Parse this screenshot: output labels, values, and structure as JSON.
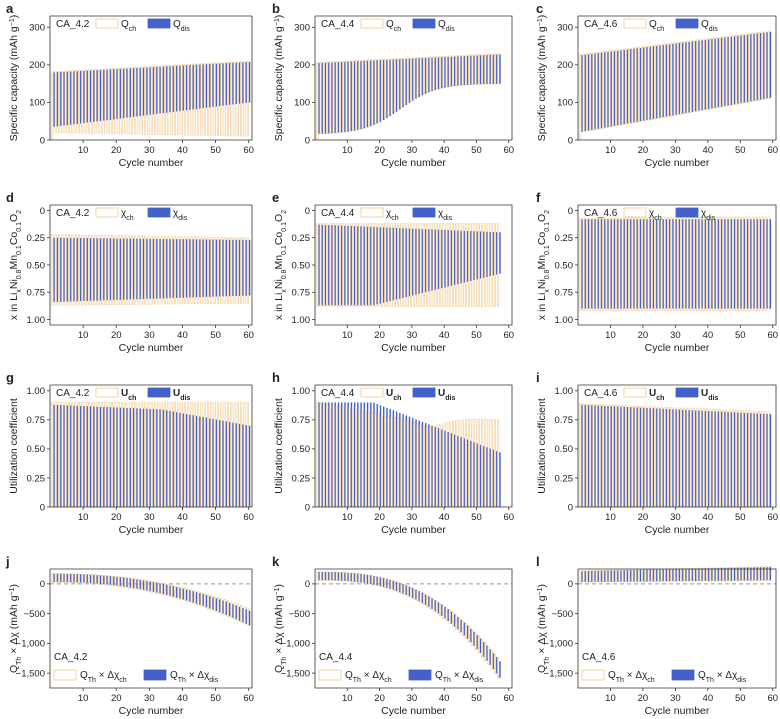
{
  "colors": {
    "charge": "#f2c98e",
    "discharge": "#4361c9",
    "axis": "#333333",
    "zero_line": "#999999"
  },
  "chart_data": [
    {
      "type": "bar",
      "panel": "a",
      "label": "CA_4.2",
      "legend": [
        {
          "main": "Q",
          "sub": "ch"
        },
        {
          "main": "Q",
          "sub": "dis"
        }
      ],
      "xlabel": "Cycle number",
      "ylabel": {
        "text": "Specific capacity (mAh g",
        "sup": "−1",
        "after": ")"
      },
      "xticks": [
        "10",
        "20",
        "30",
        "40",
        "50",
        "60"
      ],
      "yticks": [
        "0",
        "100",
        "200",
        "300"
      ],
      "yrange": [
        0,
        330
      ],
      "xrange": [
        0,
        61
      ],
      "cycles": 60,
      "ch_bottom": [
        0,
        20,
        10
      ],
      "ch_top": [
        182,
        210
      ],
      "dis_bottom": [
        35,
        100
      ],
      "dis_top": [
        180,
        208
      ]
    },
    {
      "type": "bar",
      "panel": "b",
      "label": "CA_4.4",
      "legend": [
        {
          "main": "Q",
          "sub": "ch"
        },
        {
          "main": "Q",
          "sub": "dis"
        }
      ],
      "xlabel": "Cycle number",
      "ylabel": {
        "text": "Specific capacity (mAh g",
        "sup": "−1",
        "after": ")"
      },
      "xticks": [
        "10",
        "20",
        "30",
        "40",
        "50",
        "60"
      ],
      "yticks": [
        "0",
        "100",
        "200",
        "300"
      ],
      "yrange": [
        0,
        330
      ],
      "xrange": [
        0,
        61
      ],
      "cycles": 57,
      "ch_bottom": [
        0,
        15,
        150
      ],
      "ch_top": [
        207,
        230
      ],
      "dis_bottom": [
        15,
        150
      ],
      "dis_top": [
        205,
        228
      ]
    },
    {
      "type": "bar",
      "panel": "c",
      "label": "CA_4.6",
      "legend": [
        {
          "main": "Q",
          "sub": "ch"
        },
        {
          "main": "Q",
          "sub": "dis"
        }
      ],
      "xlabel": "Cycle number",
      "ylabel": {
        "text": "Specific capacity (mAh g",
        "sup": "−1",
        "after": ")"
      },
      "xticks": [
        "10",
        "20",
        "30",
        "40",
        "50",
        "60"
      ],
      "yticks": [
        "0",
        "100",
        "200",
        "300"
      ],
      "yrange": [
        0,
        330
      ],
      "xrange": [
        0,
        61
      ],
      "cycles": 59,
      "ch_bottom": [
        0,
        20,
        110
      ],
      "ch_top": [
        228,
        290
      ],
      "dis_bottom": [
        22,
        112
      ],
      "dis_top": [
        226,
        288
      ]
    },
    {
      "type": "bar",
      "panel": "d",
      "label": "CA_4.2",
      "legend": [
        {
          "main": "χ",
          "sub": "ch"
        },
        {
          "main": "χ",
          "sub": "dis"
        }
      ],
      "xlabel": "Cycle number",
      "ylabel": {
        "text": "x in Li",
        "sub1": "x",
        "mid": "Ni",
        "sub2": "0.8",
        "mid2": "Mn",
        "sub3": "0.1",
        "mid3": "Co",
        "sub4": "0.1",
        "mid4": "O",
        "sub5": "2"
      },
      "xticks": [
        "10",
        "20",
        "30",
        "40",
        "50",
        "60"
      ],
      "yticks": [
        "0",
        "0.25",
        "0.50",
        "0.75",
        "1.00"
      ],
      "yrange": [
        1.05,
        -0.05
      ],
      "xrange": [
        0,
        61
      ],
      "cycles": 60,
      "invert": true,
      "ch_top_val": [
        0.22,
        0.25
      ],
      "ch_bottom_val": [
        0.87,
        0.85
      ],
      "dis_top_val": [
        0.25,
        0.27
      ],
      "dis_bottom_val": [
        0.84,
        0.78
      ]
    },
    {
      "type": "bar",
      "panel": "e",
      "label": "CA_4.4",
      "legend": [
        {
          "main": "χ",
          "sub": "ch"
        },
        {
          "main": "χ",
          "sub": "dis"
        }
      ],
      "xlabel": "Cycle number",
      "ylabel": {
        "text": "x in Li",
        "sub1": "x",
        "mid": "Ni",
        "sub2": "0.8",
        "mid2": "Mn",
        "sub3": "0.1",
        "mid3": "Co",
        "sub4": "0.1",
        "mid4": "O",
        "sub5": "2"
      },
      "xticks": [
        "10",
        "20",
        "30",
        "40",
        "50",
        "60"
      ],
      "yticks": [
        "0",
        "0.25",
        "0.50",
        "0.75",
        "1.00"
      ],
      "yrange": [
        1.05,
        -0.05
      ],
      "xrange": [
        0,
        61
      ],
      "cycles": 57,
      "invert": true,
      "ch_top_val": [
        0.12,
        0.12
      ],
      "ch_bottom_val": [
        0.88,
        0.88
      ],
      "dis_top_val": [
        0.13,
        0.2
      ],
      "dis_bottom_val": [
        0.87,
        0.58
      ]
    },
    {
      "type": "bar",
      "panel": "f",
      "label": "CA_4.6",
      "legend": [
        {
          "main": "χ",
          "sub": "ch"
        },
        {
          "main": "χ",
          "sub": "dis"
        }
      ],
      "xlabel": "Cycle number",
      "ylabel": {
        "text": "x in Li",
        "sub1": "x",
        "mid": "Ni",
        "sub2": "0.8",
        "mid2": "Mn",
        "sub3": "0.1",
        "mid3": "Co",
        "sub4": "0.1",
        "mid4": "O",
        "sub5": "2"
      },
      "xticks": [
        "10",
        "20",
        "30",
        "40",
        "50",
        "60"
      ],
      "yticks": [
        "0",
        "0.25",
        "0.50",
        "0.75",
        "1.00"
      ],
      "yrange": [
        1.05,
        -0.05
      ],
      "xrange": [
        0,
        61
      ],
      "cycles": 59,
      "invert": true,
      "ch_top_val": [
        0.07,
        0.06
      ],
      "ch_bottom_val": [
        0.92,
        0.92
      ],
      "dis_top_val": [
        0.08,
        0.08
      ],
      "dis_bottom_val": [
        0.9,
        0.9
      ]
    },
    {
      "type": "bar",
      "panel": "g",
      "label": "CA_4.2",
      "legend": [
        {
          "main": "U",
          "sub": "ch",
          "bold": true
        },
        {
          "main": "U",
          "sub": "dis",
          "bold": true
        }
      ],
      "xlabel": "Cycle number",
      "ylabel": {
        "text": "Utilization coefficient"
      },
      "xticks": [
        "10",
        "20",
        "30",
        "40",
        "50",
        "60"
      ],
      "yticks": [
        "0",
        "0.25",
        "0.50",
        "0.75",
        "1.00"
      ],
      "yrange": [
        0,
        1.05
      ],
      "xrange": [
        0,
        61
      ],
      "cycles": 60,
      "ch_top": [
        0.9,
        0.9
      ],
      "ch_bottom": [
        0,
        0
      ],
      "dis_top": [
        0.88,
        0.7
      ],
      "dis_bottom": [
        0,
        0
      ]
    },
    {
      "type": "bar",
      "panel": "h",
      "label": "CA_4.4",
      "legend": [
        {
          "main": "U",
          "sub": "ch",
          "bold": true
        },
        {
          "main": "U",
          "sub": "dis",
          "bold": true
        }
      ],
      "xlabel": "Cycle number",
      "ylabel": {
        "text": "Utilization coefficient"
      },
      "xticks": [
        "10",
        "20",
        "30",
        "40",
        "50",
        "60"
      ],
      "yticks": [
        "0",
        "0.25",
        "0.50",
        "0.75",
        "1.00"
      ],
      "yrange": [
        0,
        1.05
      ],
      "xrange": [
        0,
        61
      ],
      "cycles": 57,
      "ch_top": [
        0.9,
        0.75
      ],
      "ch_bottom": [
        0,
        0
      ],
      "dis_top": [
        0.9,
        0.47
      ],
      "dis_bottom": [
        0,
        0
      ]
    },
    {
      "type": "bar",
      "panel": "i",
      "label": "CA_4.6",
      "legend": [
        {
          "main": "U",
          "sub": "ch",
          "bold": true
        },
        {
          "main": "U",
          "sub": "dis",
          "bold": true
        }
      ],
      "xlabel": "Cycle number",
      "ylabel": {
        "text": "Utilization coefficient"
      },
      "xticks": [
        "10",
        "20",
        "30",
        "40",
        "50",
        "60"
      ],
      "yticks": [
        "0",
        "0.25",
        "0.50",
        "0.75",
        "1.00"
      ],
      "yrange": [
        0,
        1.05
      ],
      "xrange": [
        0,
        61
      ],
      "cycles": 59,
      "ch_top": [
        0.89,
        0.82
      ],
      "ch_bottom": [
        0,
        0
      ],
      "dis_top": [
        0.88,
        0.8
      ],
      "dis_bottom": [
        0,
        0
      ]
    },
    {
      "type": "bar",
      "panel": "j",
      "label": "CA_4.2",
      "legend": [
        {
          "main": "Q",
          "sub": "Th",
          "mid": " × Δχ",
          "sub2": "ch"
        },
        {
          "main": "Q",
          "sub": "Th",
          "mid": " × Δχ",
          "sub2": "dis"
        }
      ],
      "xlabel": "Cycle number",
      "ylabel": {
        "text": "Q",
        "sub1": "Th",
        "after": " × Δχ (mAh g",
        "sup": "−1",
        "end": ")"
      },
      "xticks": [
        "10",
        "20",
        "30",
        "40",
        "50",
        "60"
      ],
      "yticks": [
        "0",
        "−500",
        "−1,000",
        "−1,500"
      ],
      "yrange": [
        -1750,
        250
      ],
      "xrange": [
        0,
        61
      ],
      "cycles": 60,
      "ch_top": [
        175,
        -400
      ],
      "ch_bottom": [
        20,
        -700
      ],
      "dis_top": [
        170,
        -450
      ],
      "dis_bottom": [
        30,
        -700
      ]
    },
    {
      "type": "bar",
      "panel": "k",
      "label": "CA_4.4",
      "legend": [
        {
          "main": "Q",
          "sub": "Th",
          "mid": " × Δχ",
          "sub2": "ch"
        },
        {
          "main": "Q",
          "sub": "Th",
          "mid": " × Δχ",
          "sub2": "dis"
        }
      ],
      "xlabel": "Cycle number",
      "ylabel": {
        "text": "Q",
        "sub1": "Th",
        "after": " × Δχ (mAh g",
        "sup": "−1",
        "end": ")"
      },
      "xticks": [
        "10",
        "20",
        "30",
        "40",
        "50",
        "60"
      ],
      "yticks": [
        "0",
        "−500",
        "−1,000",
        "−1,500"
      ],
      "yrange": [
        -1750,
        250
      ],
      "xrange": [
        0,
        61
      ],
      "cycles": 57,
      "ch_top": [
        205,
        -1250
      ],
      "ch_bottom": [
        60,
        -1580
      ],
      "dis_top": [
        200,
        -1300
      ],
      "dis_bottom": [
        60,
        -1580
      ]
    },
    {
      "type": "bar",
      "panel": "l",
      "label": "CA_4.6",
      "legend": [
        {
          "main": "Q",
          "sub": "Th",
          "mid": " × Δχ",
          "sub2": "ch"
        },
        {
          "main": "Q",
          "sub": "Th",
          "mid": " × Δχ",
          "sub2": "dis"
        }
      ],
      "xlabel": "Cycle number",
      "ylabel": {
        "text": "Q",
        "sub1": "Th",
        "after": " × Δχ (mAh g",
        "sup": "−1",
        "end": ")"
      },
      "xticks": [
        "10",
        "20",
        "30",
        "40",
        "50",
        "60"
      ],
      "yticks": [
        "0",
        "−500",
        "−1,000",
        "−1,500"
      ],
      "yrange": [
        -1750,
        250
      ],
      "xrange": [
        0,
        61
      ],
      "cycles": 59,
      "ch_top": [
        220,
        290
      ],
      "ch_bottom": [
        30,
        60
      ],
      "dis_top": [
        215,
        285
      ],
      "dis_bottom": [
        30,
        60
      ]
    }
  ]
}
